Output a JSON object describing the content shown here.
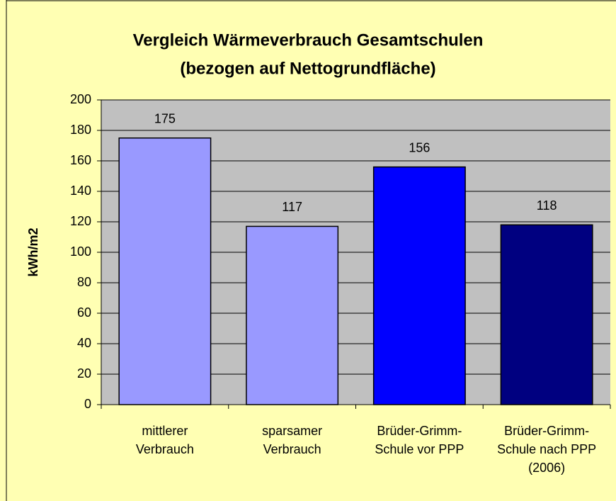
{
  "chart_data": {
    "type": "bar",
    "title": [
      "Vergleich Wärmeverbrauch Gesamtschulen",
      "(bezogen auf Nettogrundfläche)"
    ],
    "y_label": "kWh/m2",
    "categories": [
      "mittlerer Verbrauch",
      "sparsamer Verbrauch",
      "Brüder-Grimm-Schule vor PPP",
      "Brüder-Grimm-Schule nach PPP (2006)"
    ],
    "values": [
      175,
      117,
      156,
      118
    ],
    "colors": [
      "#9999ff",
      "#9999ff",
      "#0000ff",
      "#000080"
    ],
    "ylim": [
      0,
      200
    ],
    "yticks": [
      0,
      20,
      40,
      60,
      80,
      100,
      120,
      140,
      160,
      180,
      200
    ],
    "grid": true
  }
}
